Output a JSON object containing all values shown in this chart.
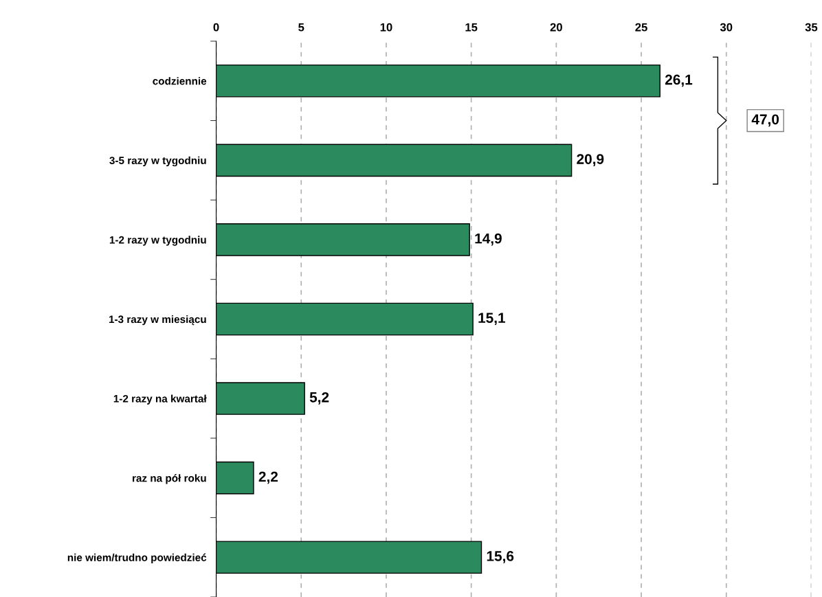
{
  "chart_data": {
    "type": "bar",
    "orientation": "horizontal",
    "categories": [
      "codziennie",
      "3-5 razy w tygodniu",
      "1-2 razy w tygodniu",
      "1-3 razy w miesiącu",
      "1-2 razy na kwartał",
      "raz na pół roku",
      "nie wiem/trudno powiedzieć"
    ],
    "values": [
      26.1,
      20.9,
      14.9,
      15.1,
      5.2,
      2.2,
      15.6
    ],
    "value_labels": [
      "26,1",
      "20,9",
      "14,9",
      "15,1",
      "5,2",
      "2,2",
      "15,6"
    ],
    "color": "#2b8a5e",
    "xlim": [
      0,
      35
    ],
    "xticks": [
      0,
      5,
      10,
      15,
      20,
      25,
      30,
      35
    ],
    "grid": "x",
    "annotations": [
      "47,0"
    ]
  }
}
